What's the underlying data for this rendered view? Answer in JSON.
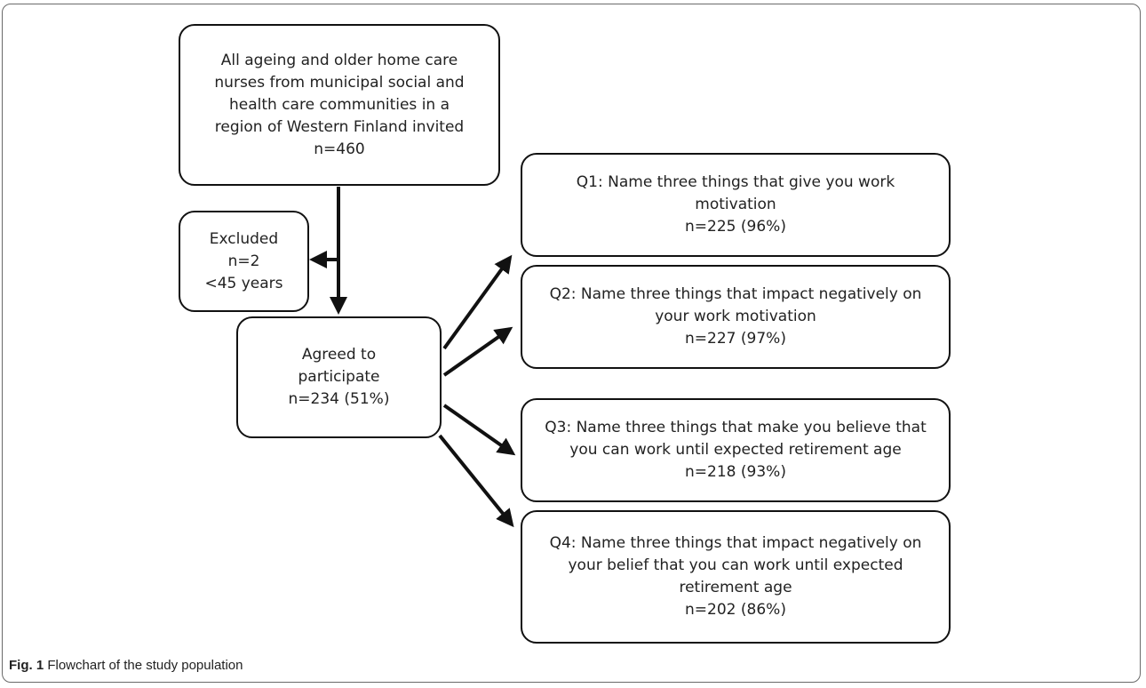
{
  "nodes": {
    "invited": {
      "lines": [
        "All ageing and older home care",
        "nurses from municipal social and",
        "health care communities in a",
        "region of Western Finland invited"
      ],
      "n": "n=460"
    },
    "excluded": {
      "lines": [
        "Excluded"
      ],
      "n": "n=2",
      "note": "<45 years"
    },
    "agreed": {
      "lines": [
        "Agreed to",
        "participate"
      ],
      "n": "n=234 (51%)"
    },
    "q1": {
      "lines": [
        "Q1: Name three things that give you work",
        "motivation"
      ],
      "n": "n=225 (96%)"
    },
    "q2": {
      "lines": [
        "Q2: Name three things that impact negatively on",
        "your work motivation"
      ],
      "n": "n=227 (97%)"
    },
    "q3": {
      "lines": [
        "Q3: Name three things that make you believe that",
        "you can work until expected retirement age"
      ],
      "n": "n=218 (93%)"
    },
    "q4": {
      "lines": [
        "Q4: Name three things that impact negatively on",
        "your belief that you can work until expected",
        "retirement age"
      ],
      "n": "n=202 (86%)"
    }
  },
  "caption": {
    "label": "Fig. 1",
    "text": " Flowchart of the study population"
  }
}
